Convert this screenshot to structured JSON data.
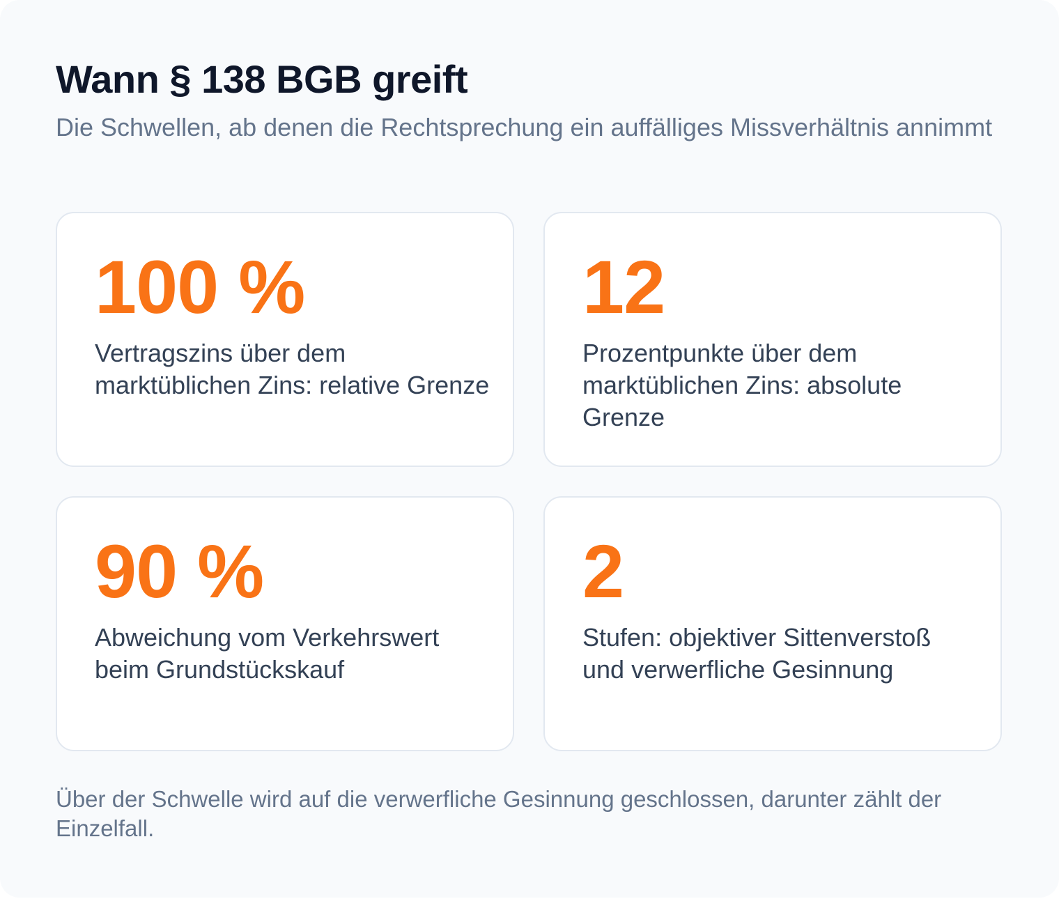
{
  "header": {
    "title": "Wann § 138 BGB greift",
    "subtitle": "Die Schwellen, ab denen die Rechtsprechung ein auffälliges Missverhältnis annimmt"
  },
  "stats": [
    {
      "value": "100 %",
      "label": "Vertragszins über dem marktüblichen Zins: relative Grenze"
    },
    {
      "value": "12",
      "label": "Prozentpunkte über dem marktüblichen Zins: absolute Grenze"
    },
    {
      "value": "90 %",
      "label": "Abweichung vom Verkehrswert beim Grundstückskauf"
    },
    {
      "value": "2",
      "label": "Stufen: objektiver Sittenverstoß und verwerfliche Gesinnung"
    }
  ],
  "footer": {
    "note": "Über der Schwelle wird auf die verwerfliche Gesinnung geschlossen, darunter zählt der Einzelfall."
  },
  "colors": {
    "accent": "#f97316",
    "title": "#0f172a",
    "muted": "#64748b",
    "body": "#334155",
    "card_border": "#e2e8f0",
    "background": "#f8fafc"
  }
}
